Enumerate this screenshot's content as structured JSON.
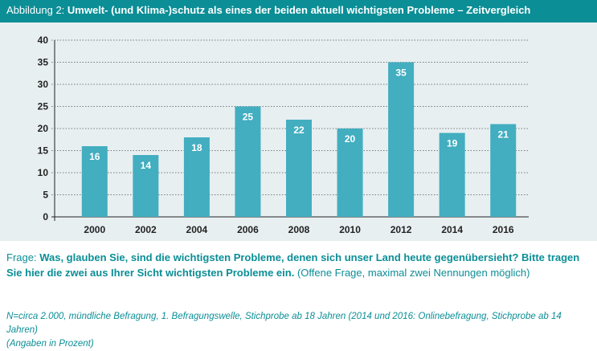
{
  "header": {
    "title_prefix": "Abbildung 2:",
    "title": "Umwelt- (und Klima-)schutz als eines der beiden aktuell wichtigsten Probleme – Zeitvergleich"
  },
  "chart_data": {
    "type": "bar",
    "categories": [
      "2000",
      "2002",
      "2004",
      "2006",
      "2008",
      "2010",
      "2012",
      "2014",
      "2016"
    ],
    "values": [
      16,
      14,
      18,
      25,
      22,
      20,
      35,
      19,
      21
    ],
    "ylim": [
      0,
      40
    ],
    "yticks": [
      0,
      5,
      10,
      15,
      20,
      25,
      30,
      35,
      40
    ],
    "grid": true,
    "bar_color": "#42aec0",
    "label_color": "#ffffff"
  },
  "question": {
    "label": "Frage:",
    "bold_text": "Was, glauben Sie, sind die wichtigsten Probleme, denen sich unser Land heute gegenübersieht? Bitte tragen Sie hier die zwei aus Ihrer Sicht wichtigsten Probleme ein.",
    "note": "(Offene Frage, maximal zwei Nennungen möglich)"
  },
  "footnote": {
    "line1": "N=circa 2.000, mündliche Befragung, 1. Befragungswelle, Stichprobe ab 18 Jahren (2014 und 2016: Onlinebefragung, Stichprobe ab 14 Jahren)",
    "line2": "(Angaben in Prozent)"
  }
}
